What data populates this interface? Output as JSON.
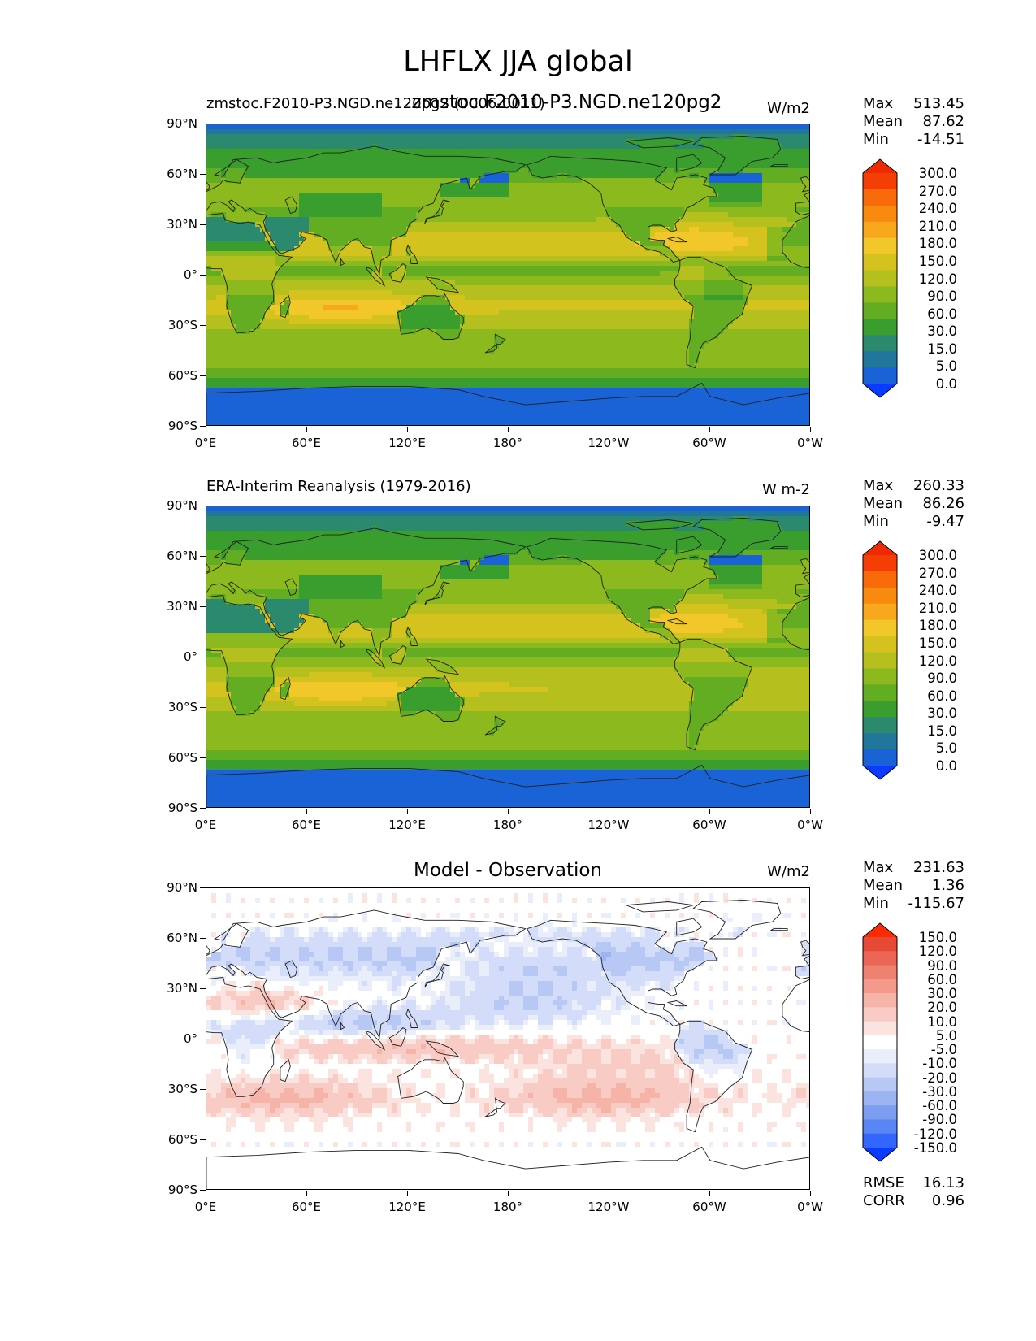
{
  "figure": {
    "title": "LHFLX JJA global",
    "lon_ticks": [
      "0°E",
      "60°E",
      "120°E",
      "180°",
      "120°W",
      "60°W",
      "0°W"
    ],
    "lat_ticks": [
      "90°N",
      "60°N",
      "30°N",
      "0°",
      "30°S",
      "60°S",
      "90°S"
    ]
  },
  "panels": [
    {
      "left_title": "zmstoc.F2010-P3.NGD.ne120pg2 (0006-0011)",
      "center_title": "zmstoc.F2010-P3.NGD.ne120pg2",
      "units": "W/m2",
      "stats": {
        "max_label": "Max",
        "max": "513.45",
        "mean_label": "Mean",
        "mean": "87.62",
        "min_label": "Min",
        "min": "-14.51"
      },
      "colorbar_levels": [
        "300.0",
        "270.0",
        "240.0",
        "210.0",
        "180.0",
        "150.0",
        "120.0",
        "90.0",
        "60.0",
        "30.0",
        "15.0",
        "5.0",
        "0.0"
      ]
    },
    {
      "left_title": "ERA-Interim Reanalysis (1979-2016)",
      "units": "W m-2",
      "stats": {
        "max_label": "Max",
        "max": "260.33",
        "mean_label": "Mean",
        "mean": "86.26",
        "min_label": "Min",
        "min": "-9.47"
      },
      "colorbar_levels": [
        "300.0",
        "270.0",
        "240.0",
        "210.0",
        "180.0",
        "150.0",
        "120.0",
        "90.0",
        "60.0",
        "30.0",
        "15.0",
        "5.0",
        "0.0"
      ]
    },
    {
      "center_title": "Model - Observation",
      "units": "W/m2",
      "stats": {
        "max_label": "Max",
        "max": "231.63",
        "mean_label": "Mean",
        "mean": "1.36",
        "min_label": "Min",
        "min": "-115.67"
      },
      "colorbar_levels": [
        "150.0",
        "120.0",
        "90.0",
        "60.0",
        "30.0",
        "20.0",
        "10.0",
        "5.0",
        "-5.0",
        "-10.0",
        "-20.0",
        "-30.0",
        "-60.0",
        "-90.0",
        "-120.0",
        "-150.0"
      ],
      "metrics": {
        "rmse_label": "RMSE",
        "rmse": "16.13",
        "corr_label": "CORR",
        "corr": "0.96"
      }
    }
  ],
  "colors": {
    "mean_field": [
      "#0a3cff",
      "#1a63d6",
      "#20779b",
      "#2b8a6e",
      "#3a9e2e",
      "#62ad22",
      "#8cb91e",
      "#b5bf1e",
      "#d4c21f",
      "#f2c729",
      "#f7a81c",
      "#f88a10",
      "#f96a0a",
      "#f53e05",
      "#f02a00"
    ],
    "diff_field": [
      "#0a3cff",
      "#3366ff",
      "#5a85f5",
      "#7d9ef0",
      "#9cb4f2",
      "#b8c8f5",
      "#d3dcf8",
      "#eaeefb",
      "#ffffff",
      "#fbe3e0",
      "#f8cbc4",
      "#f6b3a8",
      "#f39a8c",
      "#ef8170",
      "#eb6655",
      "#e64a37",
      "#ff2a00"
    ],
    "coast": "#202020"
  }
}
